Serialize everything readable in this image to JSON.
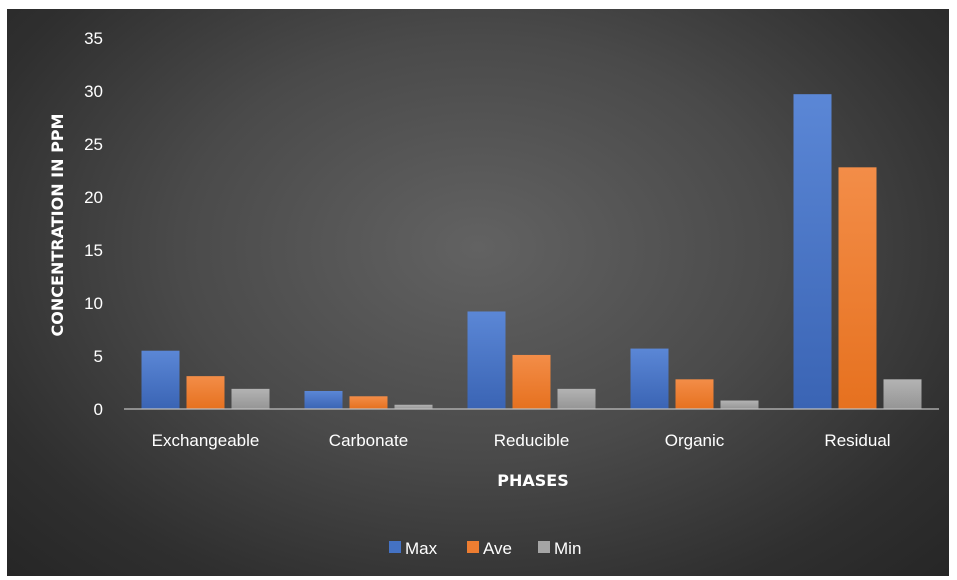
{
  "chart_data": {
    "type": "bar",
    "title": "",
    "xlabel": "PHASES",
    "ylabel": "CONCENTRATION IN PPM",
    "categories": [
      "Exchangeable",
      "Carbonate",
      "Reducible",
      "Organic",
      "Residual"
    ],
    "series": [
      {
        "name": "Max",
        "values": [
          5.5,
          1.7,
          9.2,
          5.7,
          29.7
        ],
        "color": "#4472C4"
      },
      {
        "name": "Ave",
        "values": [
          3.1,
          1.2,
          5.1,
          2.8,
          22.8
        ],
        "color": "#ED7D31"
      },
      {
        "name": "Min",
        "values": [
          1.9,
          0.4,
          1.9,
          0.8,
          2.8
        ],
        "color": "#A5A5A5"
      }
    ],
    "ylim": [
      0,
      35
    ],
    "yticks": [
      0,
      5,
      10,
      15,
      20,
      25,
      30,
      35
    ],
    "grid": false,
    "legend_position": "bottom"
  }
}
